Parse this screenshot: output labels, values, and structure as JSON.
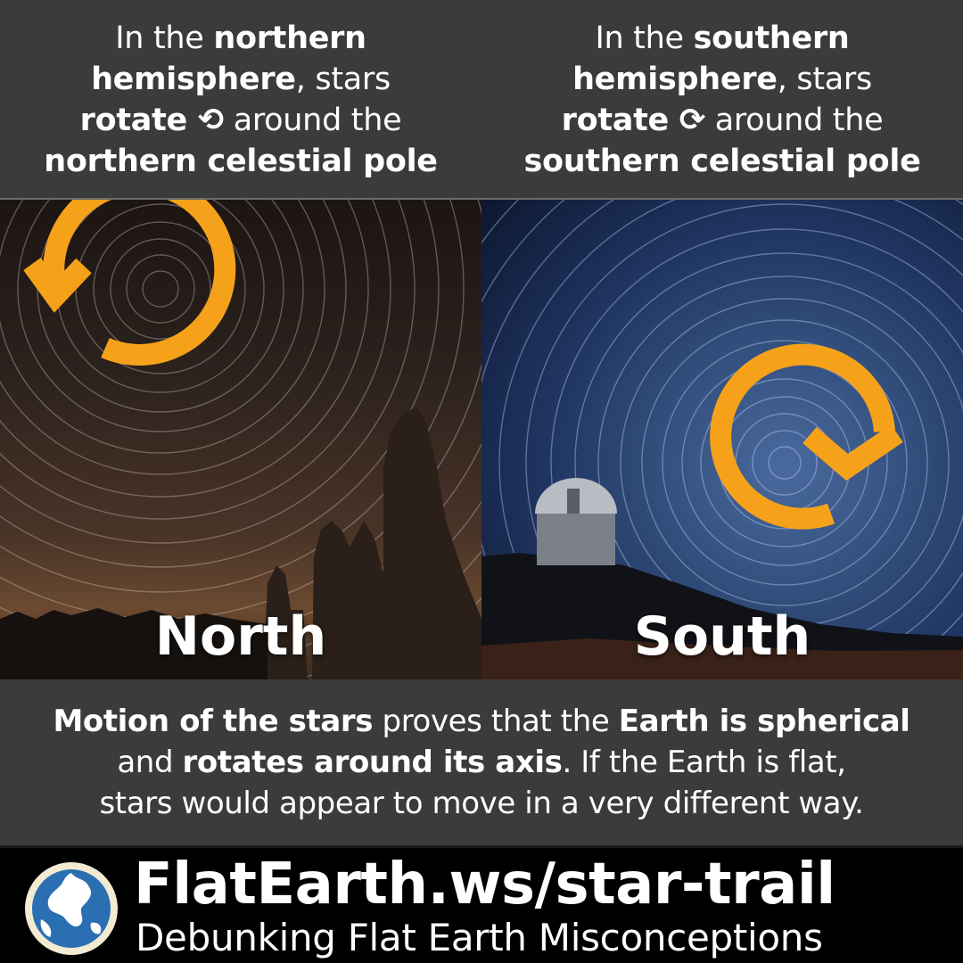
{
  "header": {
    "left": {
      "line1_a": "In the ",
      "line1_b": "northern",
      "line2_a": "hemisphere",
      "line2_b": ", stars",
      "line3_a": "rotate ⟲",
      "line3_b": " around the",
      "line4": "northern celestial pole"
    },
    "right": {
      "line1_a": "In the ",
      "line1_b": "southern",
      "line2_a": "hemisphere",
      "line2_b": ", stars",
      "line3_a": "rotate ⟳",
      "line3_b": " around the",
      "line4": "southern celestial pole"
    }
  },
  "photos": {
    "north_label": "North",
    "south_label": "South",
    "north_icon": "counterclockwise-arrow-icon",
    "south_icon": "clockwise-arrow-icon",
    "accent_color": "#f5a21a"
  },
  "summary": {
    "p1_b": "Motion of the stars",
    "p1_a": " proves that the ",
    "p1_c": "Earth is spherical",
    "p2_a": "and ",
    "p2_b": "rotates around its axis",
    "p2_c": ". If the Earth is flat,",
    "p3": "stars would appear to move in a very different way."
  },
  "footer": {
    "url": "FlatEarth.ws/star-trail",
    "tagline": "Debunking Flat Earth Misconceptions",
    "logo_icon": "globe-icon"
  }
}
